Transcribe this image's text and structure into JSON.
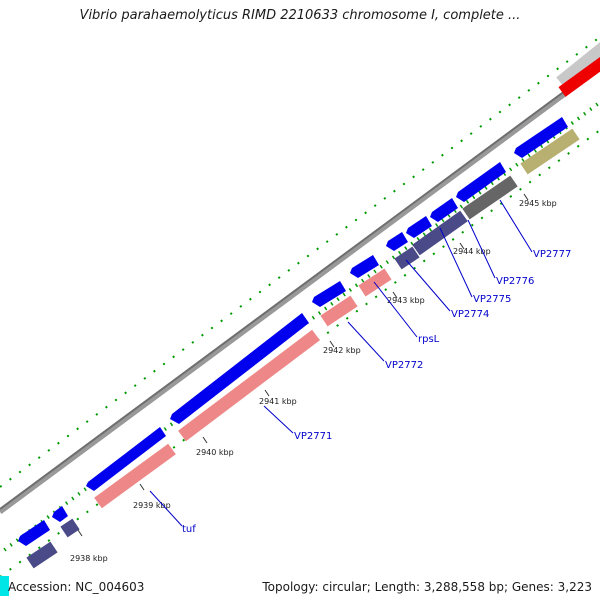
{
  "header": {
    "title": "Vibrio parahaemolyticus RIMD 2210633 chromosome I, complete ..."
  },
  "footer": {
    "accession": "Accession: NC_004603",
    "topology": "Topology: circular; Length: 3,288,558 bp; Genes: 3,223"
  },
  "colors": {
    "cds_forward": "#0000ee",
    "rrna_pink": "#ee8888",
    "cog_purple": "#4a4a88",
    "cog_gray": "#666666",
    "cog_olive": "#b8b070",
    "cog_lightgray": "#c8c8c8",
    "cog_red": "#ee0000",
    "partial_cyan": "#00e5e5",
    "backbone": "#888888",
    "tick_minor": "#009900",
    "label_blue": "#0000cc"
  },
  "axis": {
    "unit": "kbp",
    "ticks": [
      "2938 kbp",
      "2939 kbp",
      "2940 kbp",
      "2941 kbp",
      "2942 kbp",
      "2943 kbp",
      "2944 kbp",
      "2945 kbp"
    ]
  },
  "gene_labels": [
    "tuf",
    "VP2771",
    "VP2772",
    "rpsL",
    "VP2774",
    "VP2775",
    "VP2776",
    "VP2777"
  ]
}
